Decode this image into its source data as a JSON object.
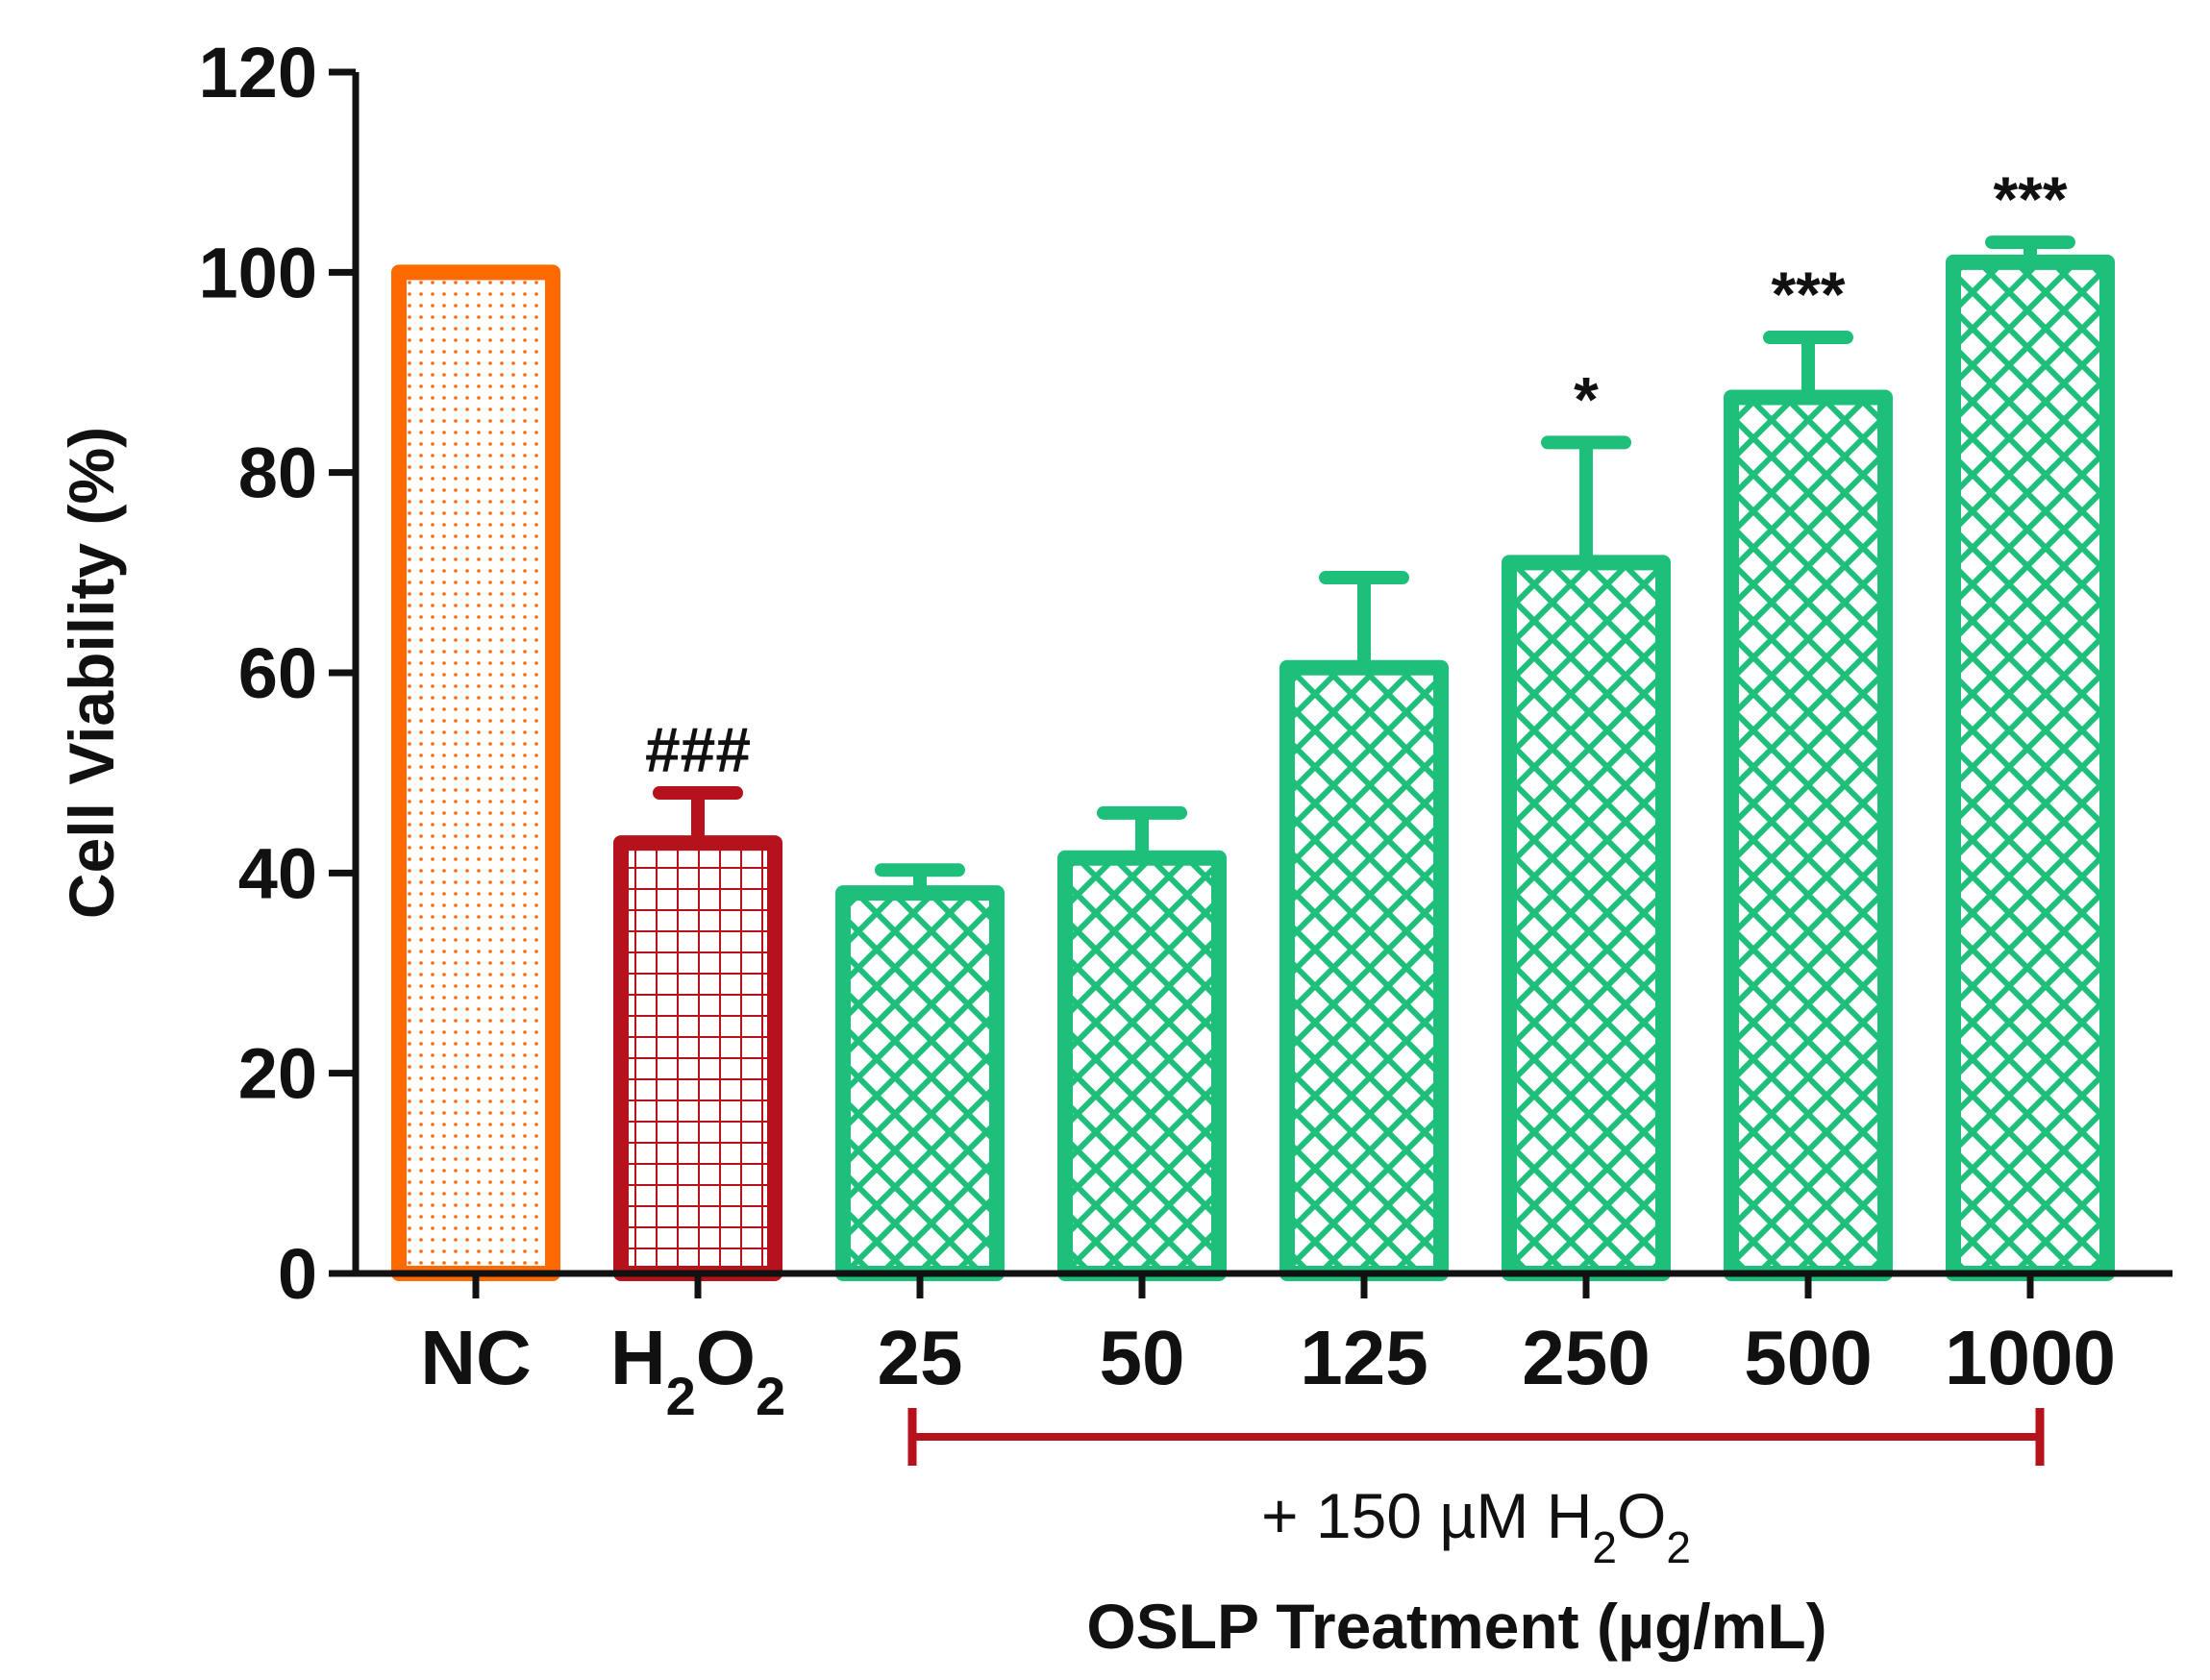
{
  "chart_data": {
    "type": "bar",
    "title": "",
    "ylabel": "Cell Viability (%)",
    "xlabel": "OSLP Treatment (µg/mL)",
    "ylim": [
      0,
      120
    ],
    "yticks": [
      0,
      20,
      40,
      60,
      80,
      100,
      120
    ],
    "categories": [
      "NC",
      "H2O2",
      "25",
      "50",
      "125",
      "250",
      "500",
      "1000"
    ],
    "values": [
      100,
      43,
      38,
      41.5,
      60.5,
      71,
      87.5,
      101
    ],
    "errors": [
      0,
      5,
      2.3,
      4.5,
      9,
      12,
      6,
      2
    ],
    "significance": [
      "",
      "###",
      "",
      "",
      "",
      "*",
      "***",
      "***"
    ],
    "colors": [
      "#ff6a00",
      "#b5121b",
      "#1dbf7a",
      "#1dbf7a",
      "#1dbf7a",
      "#1dbf7a",
      "#1dbf7a",
      "#1dbf7a"
    ],
    "patterns": [
      "dots",
      "grid",
      "diamond",
      "diamond",
      "diamond",
      "diamond",
      "diamond",
      "diamond"
    ],
    "bracket": {
      "from_category": "25",
      "to_category": "1000",
      "label_prefix": "+ 150 µM ",
      "label_chem": "H2O2",
      "color": "#b5121b"
    }
  }
}
